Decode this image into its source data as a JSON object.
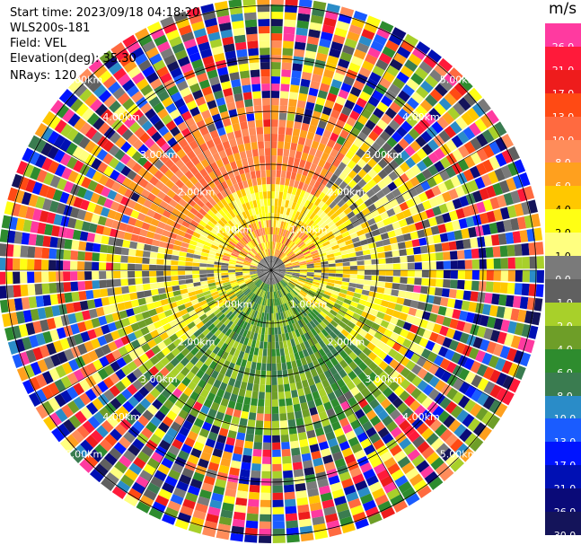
{
  "meta": {
    "start_time": "Start time: 2023/09/18 04:18:20",
    "instrument": "WLS200s-181",
    "field": "Field: VEL",
    "elevation": "Elevation(deg): 35.30",
    "nrays": "NRays: 120"
  },
  "colorbar": {
    "unit": "m/s",
    "bands": [
      {
        "label": "26.0",
        "color": "#ff3aa0"
      },
      {
        "label": "21.0",
        "color": "#ff1a3a"
      },
      {
        "label": "17.0",
        "color": "#ee1c1c"
      },
      {
        "label": "13.0",
        "color": "#ff4a14"
      },
      {
        "label": "10.0",
        "color": "#ff6a40"
      },
      {
        "label": "8.0",
        "color": "#ff8c5a"
      },
      {
        "label": "6.0",
        "color": "#ffa01e"
      },
      {
        "label": "4.0",
        "color": "#ffc800"
      },
      {
        "label": "2.0",
        "color": "#ffff14"
      },
      {
        "label": "1.0",
        "color": "#ffff80"
      },
      {
        "label": "0.0",
        "color": "#7a7a7a"
      },
      {
        "label": "-1.0",
        "color": "#606060"
      },
      {
        "label": "-2.0",
        "color": "#a8d02a"
      },
      {
        "label": "-4.0",
        "color": "#6e9e28"
      },
      {
        "label": "-6.0",
        "color": "#2e8c2e"
      },
      {
        "label": "-8.0",
        "color": "#3a7c50"
      },
      {
        "label": "-10.0",
        "color": "#2a8cc8"
      },
      {
        "label": "-13.0",
        "color": "#1a5cff"
      },
      {
        "label": "-17.0",
        "color": "#0014ff"
      },
      {
        "label": "-21.0",
        "color": "#0010b4"
      },
      {
        "label": "-26.0",
        "color": "#0a0a78"
      },
      {
        "label": "-30.0",
        "color": "#14145a"
      }
    ]
  },
  "range_rings": [
    {
      "label": "1.00km"
    },
    {
      "label": "2.00km"
    },
    {
      "label": "3.00km"
    },
    {
      "label": "4.00km"
    },
    {
      "label": "5.00km"
    }
  ]
}
